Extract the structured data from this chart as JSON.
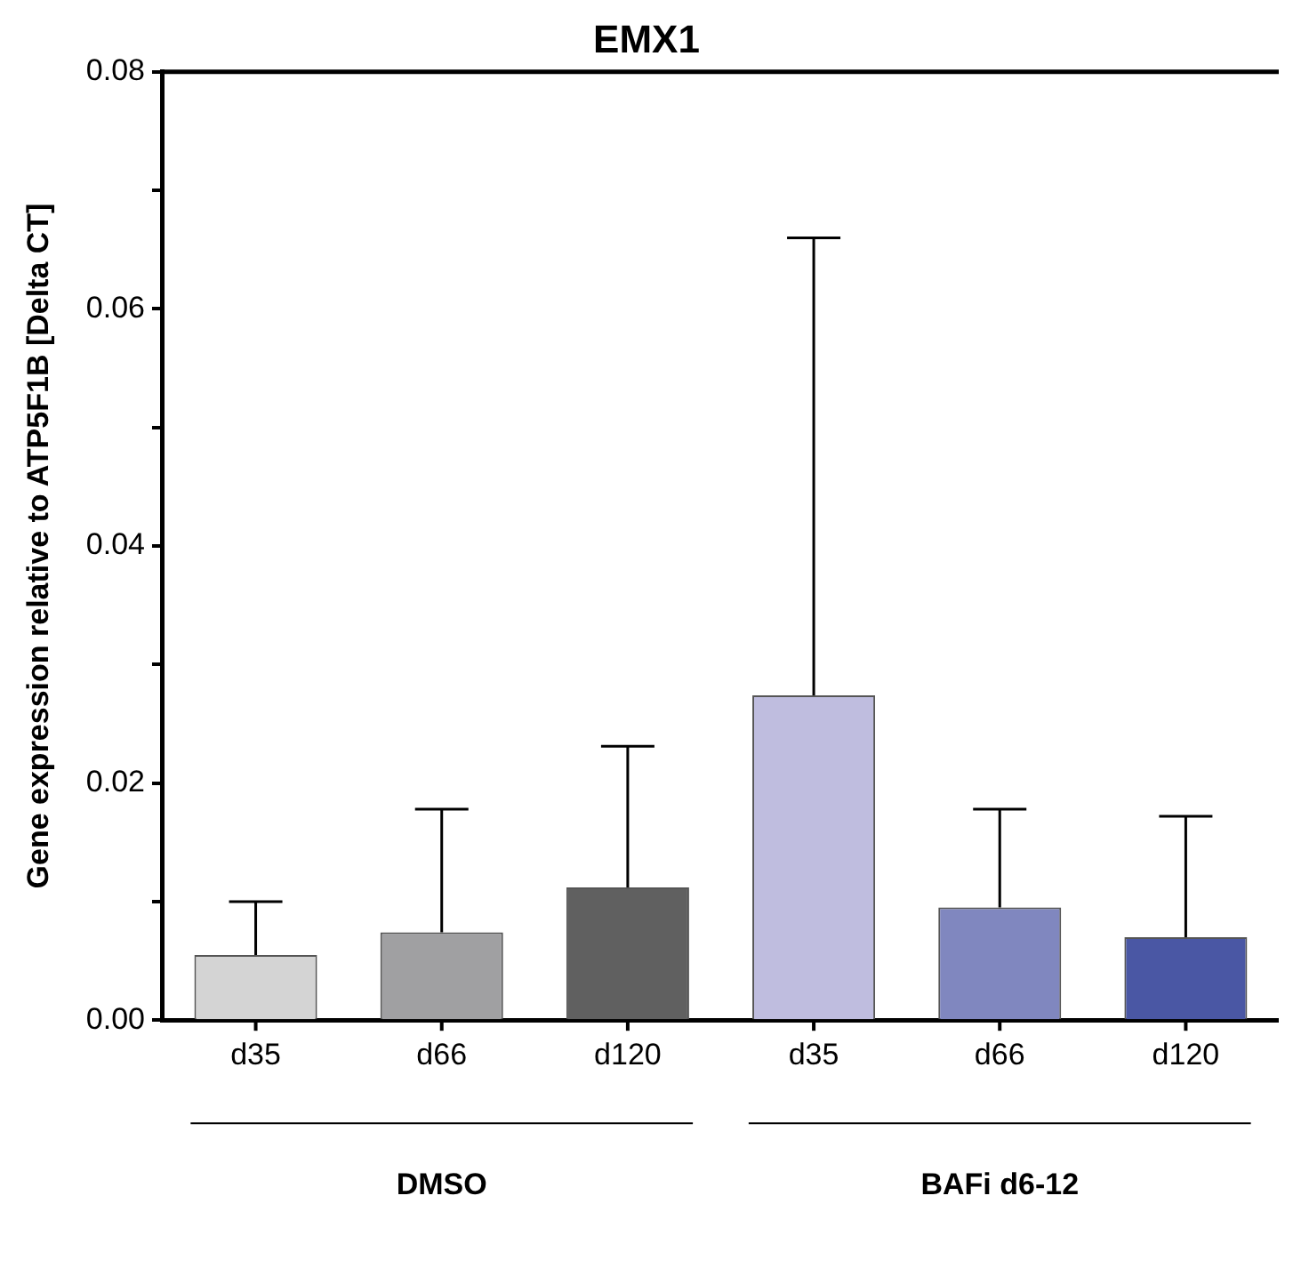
{
  "chart_data": {
    "type": "bar",
    "title": "EMX1",
    "ylabel": "Gene expression relative to ATP5F1B [Delta CT]",
    "categories": [
      "d35",
      "d66",
      "d120",
      "d35",
      "d66",
      "d120"
    ],
    "values": [
      0.0055,
      0.0074,
      0.0112,
      0.0274,
      0.0095,
      0.007
    ],
    "colors": [
      "#d4d4d4",
      "#a0a0a2",
      "#606060",
      "#bfbddf",
      "#8087bf",
      "#4a57a4"
    ],
    "errors": [
      [
        0.0055,
        0.01
      ],
      [
        0.0074,
        0.0178
      ],
      [
        0.0112,
        0.0231
      ],
      [
        0.0274,
        0.066
      ],
      [
        0.0095,
        0.0178
      ],
      [
        0.007,
        0.0172
      ]
    ],
    "ylim": [
      0,
      0.08
    ],
    "yticks": [
      {
        "value": 0,
        "label": "0.00"
      },
      {
        "value": 0.01,
        "label": null
      },
      0.02,
      {
        "value": 0.03,
        "label": null
      },
      0.04,
      {
        "value": 0.05,
        "label": null
      },
      0.06,
      {
        "value": 0.07,
        "label": null
      },
      0.08
    ],
    "annotations": [
      "DMSO",
      "BAFi d6-12"
    ],
    "grid": false,
    "legend": false
  }
}
